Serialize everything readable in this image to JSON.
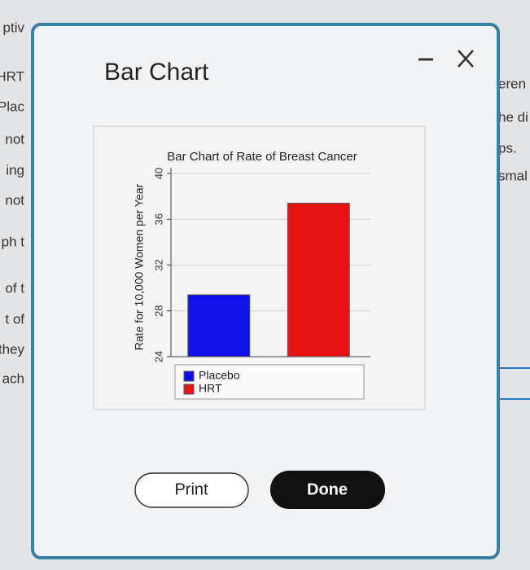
{
  "dialog": {
    "title": "Bar Chart",
    "buttons": [
      "Print",
      "Done"
    ]
  },
  "background": {
    "left": [
      "ptiv",
      "HRT",
      "Plac",
      "not",
      "ing",
      "not",
      "ph t",
      "of t",
      "t of",
      "they",
      "ach"
    ],
    "right": [
      "eren",
      "he di",
      "ps.",
      "smal"
    ]
  },
  "chart_data": {
    "type": "bar",
    "title": "Bar Chart of Rate of Breast Cancer",
    "ylabel": "Rate for 10,000 Women per Year",
    "categories": [
      null
    ],
    "series": [
      {
        "name": "Placebo",
        "color": "#1010e8",
        "values": [
          29.4
        ]
      },
      {
        "name": "HRT",
        "color": "#e81414",
        "values": [
          37.4
        ]
      }
    ],
    "ylim": [
      24,
      40.5
    ],
    "yticks": [
      24,
      28,
      32,
      36,
      40
    ],
    "grid": true
  }
}
